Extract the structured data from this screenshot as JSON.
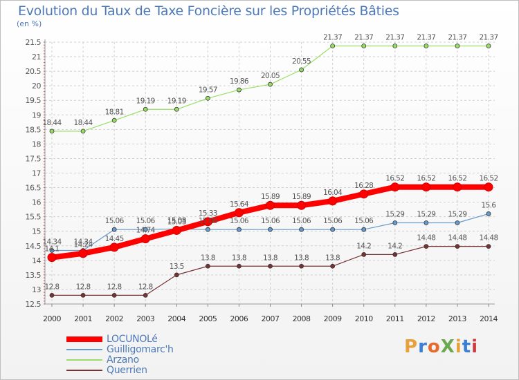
{
  "title": "Evolution du Taux de Taxe Foncière sur les Propriétés Bâties",
  "subtitle": "(en %)",
  "logo": {
    "text": "ProXiti",
    "colors": [
      "#e8a13a",
      "#3a7fd4",
      "#e86a2a",
      "#6aa84f",
      "#e8a13a",
      "#3a7fd4",
      "#cc3b3b"
    ]
  },
  "chart_data": {
    "type": "line",
    "title": "Evolution du Taux de Taxe Foncière sur les Propriétés Bâties",
    "ylabel": "(en %)",
    "xlabel": "",
    "x": [
      "2000",
      "2001",
      "2002",
      "2003",
      "2004",
      "2005",
      "2006",
      "2007",
      "2008",
      "2009",
      "2010",
      "2011",
      "2012",
      "2013",
      "2014"
    ],
    "ylim": [
      12.5,
      21.5
    ],
    "yticks": [
      "12.5",
      "13",
      "13.5",
      "14",
      "14.5",
      "15",
      "15.5",
      "16",
      "16.5",
      "17",
      "17.5",
      "18",
      "18.5",
      "19",
      "19.5",
      "20",
      "20.5",
      "21",
      "21.5"
    ],
    "grid": true,
    "legend_position": "bottom-left",
    "series": [
      {
        "name": "LOCUNOLé",
        "color": "#ff0000",
        "emphasis": true,
        "values": [
          14.1,
          14.24,
          14.45,
          14.74,
          15.03,
          15.33,
          15.64,
          15.89,
          15.89,
          16.04,
          16.28,
          16.52,
          16.52,
          16.52,
          16.52
        ],
        "labels": [
          "14.1",
          "14.24",
          "14.45",
          "14.74",
          "15.03",
          "15.33",
          "15.64",
          "15.89",
          "15.89",
          "16.04",
          "16.28",
          "16.52",
          "16.52",
          "16.52",
          "16.52"
        ]
      },
      {
        "name": "Guilligomarc'h",
        "color": "#6699cc",
        "values": [
          14.34,
          14.34,
          15.06,
          15.06,
          15.08,
          15.06,
          15.06,
          15.06,
          15.06,
          15.06,
          15.06,
          15.29,
          15.29,
          15.29,
          15.6
        ],
        "labels": [
          "14.34",
          "14.34",
          "15.06",
          "15.06",
          "15.08",
          "15.06",
          "15.06",
          "15.06",
          "15.06",
          "15.06",
          "15.06",
          "15.29",
          "15.29",
          "15.29",
          "15.6"
        ]
      },
      {
        "name": "Arzano",
        "color": "#99dd66",
        "values": [
          18.44,
          18.44,
          18.81,
          19.19,
          19.19,
          19.57,
          19.86,
          20.05,
          20.55,
          21.37,
          21.37,
          21.37,
          21.37,
          21.37,
          21.37
        ],
        "labels": [
          "18.44",
          "18.44",
          "18.81",
          "19.19",
          "19.19",
          "19.57",
          "19.86",
          "20.05",
          "20.55",
          "21.37",
          "21.37",
          "21.37",
          "21.37",
          "21.37",
          "21.37"
        ]
      },
      {
        "name": "Querrien",
        "color": "#773333",
        "values": [
          12.8,
          12.8,
          12.8,
          12.8,
          13.5,
          13.8,
          13.8,
          13.8,
          13.8,
          13.8,
          14.2,
          14.2,
          14.48,
          14.48,
          14.48
        ],
        "labels": [
          "12.8",
          "12.8",
          "12.8",
          "12.8",
          "13.5",
          "13.8",
          "13.8",
          "13.8",
          "13.8",
          "13.8",
          "14.2",
          "14.2",
          "14.48",
          "14.48",
          "14.48"
        ]
      }
    ]
  }
}
